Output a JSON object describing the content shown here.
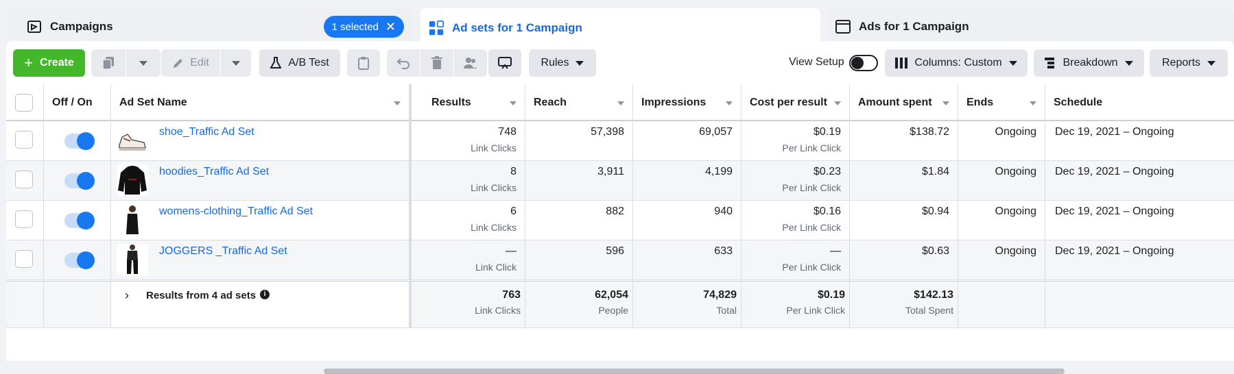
{
  "tabs": [
    {
      "label": "Campaigns",
      "icon": "campaign-icon"
    },
    {
      "label": "Ad sets for 1 Campaign",
      "icon": "adsets-grid-icon"
    },
    {
      "label": "Ads for 1 Campaign",
      "icon": "ad-window-icon"
    }
  ],
  "selected_pill": {
    "label": "1 selected",
    "close": "✕"
  },
  "toolbar": {
    "create": "Create",
    "edit": "Edit",
    "ab_test": "A/B Test",
    "rules": "Rules",
    "view_setup": "View Setup",
    "columns": "Columns: Custom",
    "breakdown": "Breakdown",
    "reports": "Reports"
  },
  "columns": [
    "Off / On",
    "Ad Set Name",
    "Results",
    "Reach",
    "Impressions",
    "Cost per result",
    "Amount spent",
    "Ends",
    "Schedule"
  ],
  "rows": [
    {
      "name": "shoe_Traffic Ad Set",
      "results": "748",
      "results_sub": "Link Clicks",
      "reach": "57,398",
      "impressions": "69,057",
      "cost": "$0.19",
      "cost_sub": "Per Link Click",
      "spent": "$138.72",
      "ends": "Ongoing",
      "schedule": "Dec 19, 2021 – Ongoing",
      "thumb": "shoe"
    },
    {
      "name": "hoodies_Traffic Ad Set",
      "results": "8",
      "results_sub": "Link Clicks",
      "reach": "3,911",
      "impressions": "4,199",
      "cost": "$0.23",
      "cost_sub": "Per Link Click",
      "spent": "$1.84",
      "ends": "Ongoing",
      "schedule": "Dec 19, 2021 – Ongoing",
      "thumb": "hoodie"
    },
    {
      "name": "womens-clothing_Traffic Ad Set",
      "results": "6",
      "results_sub": "Link Clicks",
      "reach": "882",
      "impressions": "940",
      "cost": "$0.16",
      "cost_sub": "Per Link Click",
      "spent": "$0.94",
      "ends": "Ongoing",
      "schedule": "Dec 19, 2021 – Ongoing",
      "thumb": "dress"
    },
    {
      "name": "JOGGERS _Traffic Ad Set",
      "results": "—",
      "results_sub": "Link Click",
      "reach": "596",
      "impressions": "633",
      "cost": "—",
      "cost_sub": "Per Link Click",
      "spent": "$0.63",
      "ends": "Ongoing",
      "schedule": "Dec 19, 2021 – Ongoing",
      "thumb": "joggers"
    }
  ],
  "totals": {
    "label": "Results from 4 ad sets",
    "results": "763",
    "results_sub": "Link Clicks",
    "reach": "62,054",
    "reach_sub": "People",
    "impressions": "74,829",
    "impressions_sub": "Total",
    "cost": "$0.19",
    "cost_sub": "Per Link Click",
    "spent": "$142.13",
    "spent_sub": "Total Spent"
  },
  "colors": {
    "accent": "#1877f2",
    "create": "#42b72a",
    "link": "#1668dc"
  }
}
